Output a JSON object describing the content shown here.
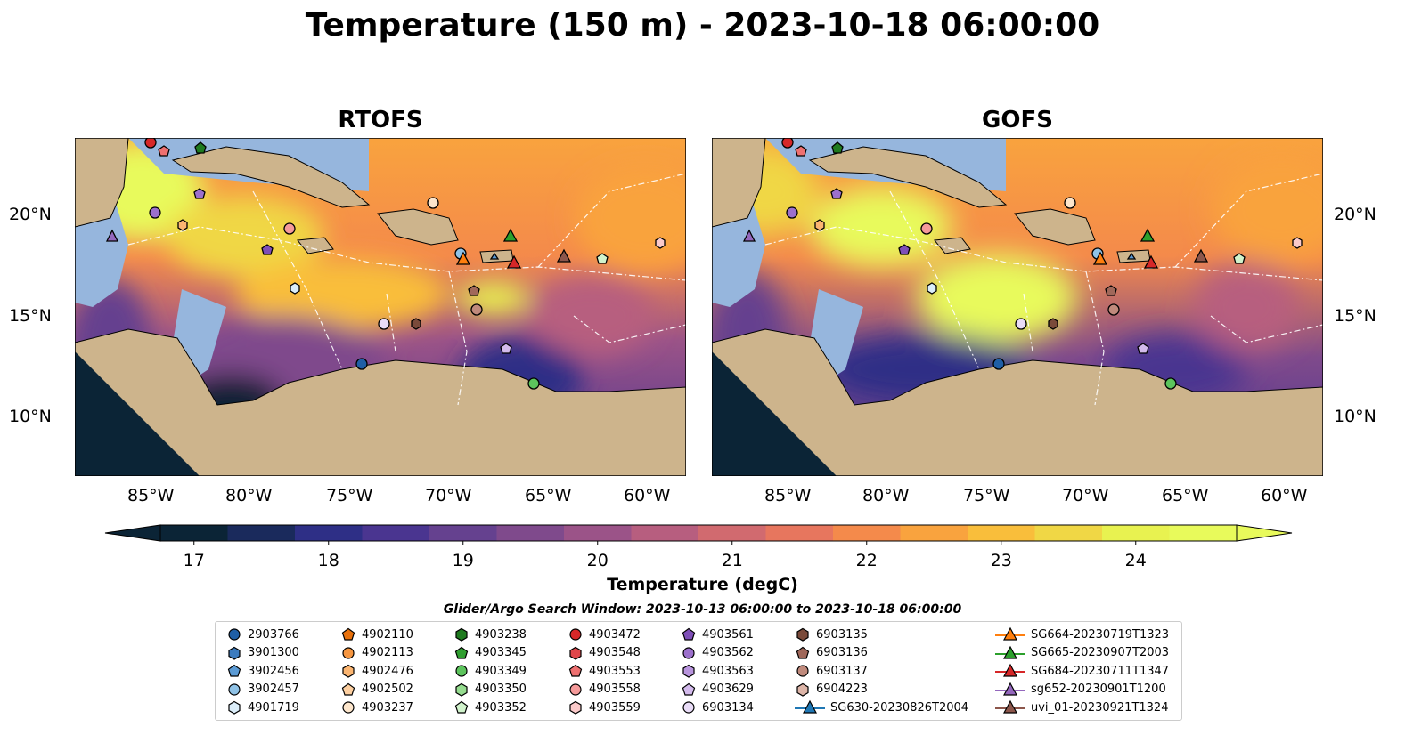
{
  "title": "Temperature (150 m) - 2023-10-18 06:00:00",
  "panels": [
    {
      "title": "RTOFS"
    },
    {
      "title": "GOFS"
    }
  ],
  "map_axes": {
    "lon_ticks": [
      "85°W",
      "80°W",
      "75°W",
      "70°W",
      "65°W",
      "60°W"
    ],
    "lat_ticks": [
      "20°N",
      "15°N",
      "10°N"
    ]
  },
  "colorbar": {
    "label": "Temperature (degC)",
    "ticks": [
      "17",
      "18",
      "19",
      "20",
      "21",
      "22",
      "23",
      "24"
    ],
    "range": [
      16.75,
      24.75
    ],
    "step": 0.5,
    "extend": "both",
    "colormap": [
      "#0b2436",
      "#1a2a5c",
      "#2e2f86",
      "#4a3590",
      "#65418f",
      "#7f4a8c",
      "#9b5388",
      "#b75e7f",
      "#d16a6f",
      "#e7765e",
      "#f48a4b",
      "#f9a33e",
      "#f9be3b",
      "#f0d745",
      "#e8f250",
      "#e8fa5b"
    ]
  },
  "legend": {
    "title": "Glider/Argo Search Window: 2023-10-13 06:00:00 to 2023-10-18 06:00:00",
    "columns": [
      [
        {
          "label": "2903766",
          "marker": "circle",
          "color": "#1f5fa6"
        },
        {
          "label": "3901300",
          "marker": "hexagon",
          "color": "#3b7bbf"
        },
        {
          "label": "3902456",
          "marker": "pentagon",
          "color": "#5b9bd5"
        },
        {
          "label": "3902457",
          "marker": "circle",
          "color": "#8fc2e6"
        },
        {
          "label": "4901719",
          "marker": "hexagon",
          "color": "#dbeefa"
        }
      ],
      [
        {
          "label": "4902110",
          "marker": "pentagon",
          "color": "#e8700a"
        },
        {
          "label": "4902113",
          "marker": "circle",
          "color": "#f69640"
        },
        {
          "label": "4902476",
          "marker": "hexagon",
          "color": "#fbb571"
        },
        {
          "label": "4902502",
          "marker": "pentagon",
          "color": "#fdcfa0"
        },
        {
          "label": "4903237",
          "marker": "circle",
          "color": "#fde6cc"
        }
      ],
      [
        {
          "label": "4903238",
          "marker": "hexagon",
          "color": "#1e7a1e"
        },
        {
          "label": "4903345",
          "marker": "pentagon",
          "color": "#2f9e2f"
        },
        {
          "label": "4903349",
          "marker": "circle",
          "color": "#5cc45c"
        },
        {
          "label": "4903350",
          "marker": "hexagon",
          "color": "#95dc8f"
        },
        {
          "label": "4903352",
          "marker": "pentagon",
          "color": "#d1f3cc"
        }
      ],
      [
        {
          "label": "4903472",
          "marker": "circle",
          "color": "#d62728"
        },
        {
          "label": "4903548",
          "marker": "hexagon",
          "color": "#e0464a"
        },
        {
          "label": "4903553",
          "marker": "pentagon",
          "color": "#ee7070"
        },
        {
          "label": "4903558",
          "marker": "circle",
          "color": "#f59a9a"
        },
        {
          "label": "4903559",
          "marker": "hexagon",
          "color": "#fbcaca"
        }
      ],
      [
        {
          "label": "4903561",
          "marker": "pentagon",
          "color": "#7f4fb8"
        },
        {
          "label": "4903562",
          "marker": "circle",
          "color": "#9c70cc"
        },
        {
          "label": "4903563",
          "marker": "hexagon",
          "color": "#b894dd"
        },
        {
          "label": "4903629",
          "marker": "pentagon",
          "color": "#d3baec"
        },
        {
          "label": "6903134",
          "marker": "circle",
          "color": "#e9dcf7"
        }
      ],
      [
        {
          "label": "6903135",
          "marker": "hexagon",
          "color": "#7a4a3a"
        },
        {
          "label": "6903136",
          "marker": "pentagon",
          "color": "#a0685a"
        },
        {
          "label": "6903137",
          "marker": "circle",
          "color": "#c08a7c"
        },
        {
          "label": "6904223",
          "marker": "hexagon",
          "color": "#ddb5a8"
        },
        {
          "label": "SG630-20230826T2004",
          "marker": "triangle-line",
          "color": "#1f77b4"
        }
      ],
      [
        {
          "label": "SG664-20230719T1323",
          "marker": "triangle-line",
          "color": "#ff7f0e"
        },
        {
          "label": "SG665-20230907T2003",
          "marker": "triangle-line",
          "color": "#2ca02c"
        },
        {
          "label": "SG684-20230711T1347",
          "marker": "triangle-line",
          "color": "#d62728"
        },
        {
          "label": "sg652-20230901T1200",
          "marker": "triangle-line",
          "color": "#9467bd"
        },
        {
          "label": "uvi_01-20230921T1324",
          "marker": "triangle-line",
          "color": "#8c564b"
        }
      ]
    ]
  }
}
